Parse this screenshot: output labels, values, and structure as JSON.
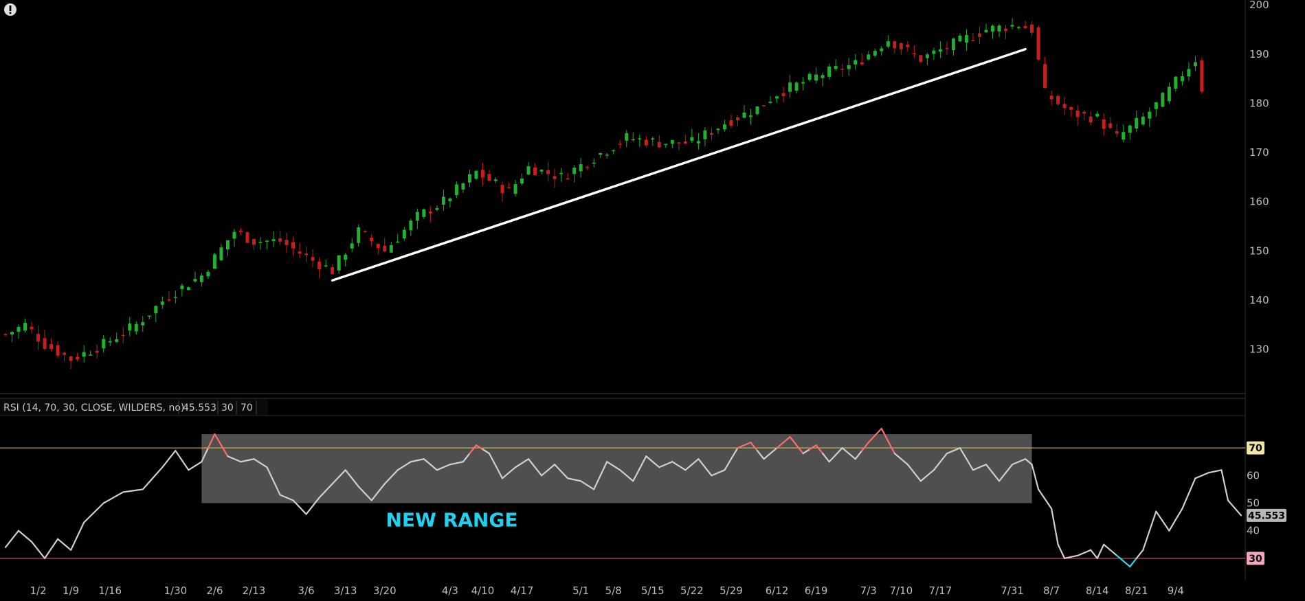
{
  "alert_icon": "exclamation-circle-icon",
  "colors": {
    "up": "#1fb12f",
    "down": "#c81e1e",
    "rsi_line": "#cfcfcf",
    "overbought": "#ff6b6b",
    "oversold": "#32d7ee",
    "level70_line": "#d9c76a",
    "level30_line": "#e46a8a",
    "range_box": "#6a6a6a",
    "annotation": "#1ed2f0"
  },
  "chart_data": [
    {
      "type": "candlestick",
      "name": "price",
      "ylim": [
        121,
        201
      ],
      "yticks": [
        130,
        140,
        150,
        160,
        170,
        180,
        190,
        200
      ],
      "ytick_labels": [
        "130",
        "140",
        "150",
        "160",
        "170",
        "180",
        "190",
        "200"
      ],
      "x_dates": [
        "1/2",
        "1/9",
        "1/16",
        "1/30",
        "2/6",
        "2/13",
        "3/6",
        "3/13",
        "3/20",
        "4/3",
        "4/10",
        "4/17",
        "5/1",
        "5/8",
        "5/15",
        "5/22",
        "5/29",
        "6/12",
        "6/19",
        "7/3",
        "7/10",
        "7/17",
        "7/31",
        "8/7",
        "8/14",
        "8/21",
        "9/4"
      ],
      "key_closes": [
        [
          0,
          133
        ],
        [
          3,
          135
        ],
        [
          6,
          131
        ],
        [
          10,
          128
        ],
        [
          15,
          131
        ],
        [
          20,
          135
        ],
        [
          25,
          141
        ],
        [
          30,
          145
        ],
        [
          35,
          154
        ],
        [
          38,
          152
        ],
        [
          42,
          152
        ],
        [
          47,
          148
        ],
        [
          50,
          146
        ],
        [
          54,
          154
        ],
        [
          58,
          150
        ],
        [
          63,
          157
        ],
        [
          67,
          160
        ],
        [
          72,
          166
        ],
        [
          77,
          162
        ],
        [
          80,
          167
        ],
        [
          85,
          165
        ],
        [
          90,
          169
        ],
        [
          95,
          173
        ],
        [
          100,
          172
        ],
        [
          105,
          172
        ],
        [
          110,
          176
        ],
        [
          115,
          179
        ],
        [
          118,
          182
        ],
        [
          125,
          186
        ],
        [
          130,
          188
        ],
        [
          135,
          193
        ],
        [
          140,
          189
        ],
        [
          145,
          192
        ],
        [
          150,
          195
        ],
        [
          155,
          196
        ],
        [
          157,
          195
        ],
        [
          159,
          182
        ],
        [
          163,
          178
        ],
        [
          167,
          177
        ],
        [
          170,
          173
        ],
        [
          174,
          177
        ],
        [
          177,
          181
        ],
        [
          180,
          186
        ],
        [
          182,
          189
        ],
        [
          183,
          183
        ]
      ],
      "trendline": {
        "start": [
          50,
          144
        ],
        "end": [
          156,
          191
        ],
        "color": "#ffffff"
      }
    },
    {
      "type": "line",
      "name": "rsi",
      "header": "RSI (14, 70, 30, CLOSE, WILDERS, no)",
      "last_value": "45.553",
      "oversold_label": "30",
      "overbought_label": "70",
      "ylim": [
        22,
        80
      ],
      "yticks": [
        40,
        50,
        60
      ],
      "ytick_labels": [
        "40",
        "50",
        "60"
      ],
      "level_labels": {
        "overbought": "70",
        "oversold": "30"
      },
      "key_points": [
        [
          0,
          34
        ],
        [
          2,
          40
        ],
        [
          4,
          36
        ],
        [
          6,
          30
        ],
        [
          8,
          37
        ],
        [
          10,
          33
        ],
        [
          12,
          43
        ],
        [
          15,
          50
        ],
        [
          18,
          54
        ],
        [
          21,
          55
        ],
        [
          24,
          63
        ],
        [
          26,
          69
        ],
        [
          28,
          62
        ],
        [
          30,
          65
        ],
        [
          32,
          75
        ],
        [
          34,
          67
        ],
        [
          36,
          65
        ],
        [
          38,
          66
        ],
        [
          40,
          63
        ],
        [
          42,
          53
        ],
        [
          44,
          51
        ],
        [
          46,
          46
        ],
        [
          48,
          52
        ],
        [
          50,
          57
        ],
        [
          52,
          62
        ],
        [
          54,
          56
        ],
        [
          56,
          51
        ],
        [
          58,
          57
        ],
        [
          60,
          62
        ],
        [
          62,
          65
        ],
        [
          64,
          66
        ],
        [
          66,
          62
        ],
        [
          68,
          64
        ],
        [
          70,
          65
        ],
        [
          72,
          71
        ],
        [
          74,
          68
        ],
        [
          76,
          59
        ],
        [
          78,
          63
        ],
        [
          80,
          66
        ],
        [
          82,
          60
        ],
        [
          84,
          64
        ],
        [
          86,
          59
        ],
        [
          88,
          58
        ],
        [
          90,
          55
        ],
        [
          92,
          65
        ],
        [
          94,
          62
        ],
        [
          96,
          58
        ],
        [
          98,
          67
        ],
        [
          100,
          63
        ],
        [
          102,
          65
        ],
        [
          104,
          62
        ],
        [
          106,
          66
        ],
        [
          108,
          60
        ],
        [
          110,
          62
        ],
        [
          112,
          70
        ],
        [
          114,
          72
        ],
        [
          116,
          66
        ],
        [
          118,
          70
        ],
        [
          120,
          74
        ],
        [
          122,
          68
        ],
        [
          124,
          71
        ],
        [
          126,
          65
        ],
        [
          128,
          70
        ],
        [
          130,
          66
        ],
        [
          132,
          72
        ],
        [
          134,
          77
        ],
        [
          136,
          68
        ],
        [
          138,
          64
        ],
        [
          140,
          58
        ],
        [
          142,
          62
        ],
        [
          144,
          68
        ],
        [
          146,
          70
        ],
        [
          148,
          62
        ],
        [
          150,
          64
        ],
        [
          152,
          58
        ],
        [
          154,
          64
        ],
        [
          156,
          66
        ],
        [
          157,
          64
        ],
        [
          158,
          55
        ],
        [
          160,
          48
        ],
        [
          161,
          35
        ],
        [
          162,
          30
        ],
        [
          164,
          31
        ],
        [
          166,
          33
        ],
        [
          167,
          30
        ],
        [
          168,
          35
        ],
        [
          170,
          31
        ],
        [
          172,
          27
        ],
        [
          174,
          33
        ],
        [
          176,
          47
        ],
        [
          178,
          40
        ],
        [
          180,
          48
        ],
        [
          182,
          59
        ],
        [
          184,
          61
        ],
        [
          186,
          62
        ],
        [
          187,
          51
        ],
        [
          189,
          45.553
        ]
      ],
      "range_box": {
        "x0": 30,
        "x1": 157,
        "y0": 50,
        "y1": 75
      },
      "annotation": "NEW RANGE"
    }
  ]
}
